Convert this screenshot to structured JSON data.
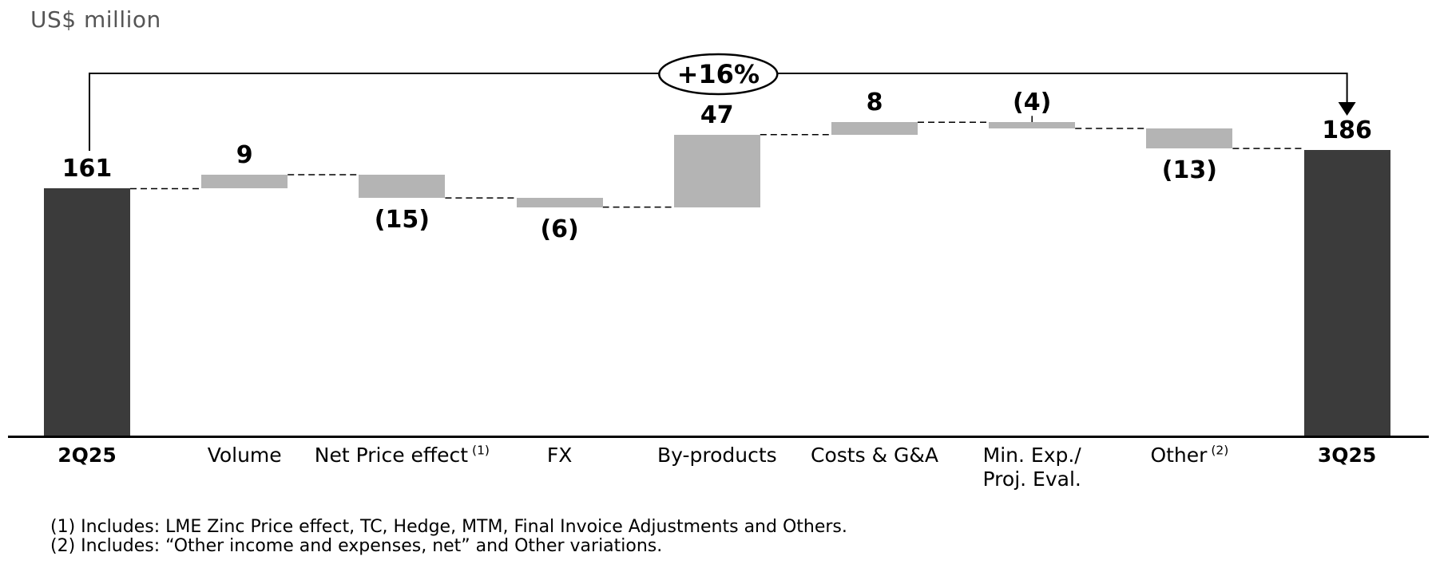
{
  "chart_data": {
    "type": "waterfall",
    "title": "US$ million",
    "change_label": "+16%",
    "categories": [
      "2Q25",
      "Volume",
      "Net Price effect (1)",
      "FX",
      "By-products",
      "Costs & G&A",
      "Min. Exp./Proj. Eval.",
      "Other (2)",
      "3Q25"
    ],
    "steps": [
      {
        "label": "2Q25",
        "type": "total",
        "value": 161,
        "display": "161",
        "bold_axis_label": true
      },
      {
        "label": "Volume",
        "type": "delta",
        "value": 9,
        "display": "9"
      },
      {
        "label": "Net Price effect",
        "sup": "(1)",
        "type": "delta",
        "value": -15,
        "display": "(15)"
      },
      {
        "label": "FX",
        "type": "delta",
        "value": -6,
        "display": "(6)"
      },
      {
        "label": "By-products",
        "type": "delta",
        "value": 47,
        "display": "47"
      },
      {
        "label": "Costs & G&A",
        "type": "delta",
        "value": 8,
        "display": "8"
      },
      {
        "label": "Min. Exp./\nProj. Eval.",
        "type": "delta",
        "value": -4,
        "display": "(4)",
        "label_position": "above"
      },
      {
        "label": "Other",
        "sup": "(2)",
        "type": "delta",
        "value": -13,
        "display": "(13)"
      },
      {
        "label": "3Q25",
        "type": "total",
        "value": 186,
        "display": "186",
        "bold_axis_label": true
      }
    ],
    "start_value": 161,
    "end_value": 186,
    "footnotes": [
      "(1) Includes: LME Zinc Price effect, TC, Hedge, MTM, Final Invoice Adjustments and Others.",
      "(2) Includes: “Other income and expenses, net” and Other variations."
    ],
    "colors": {
      "total_bar": "#3b3b3b",
      "delta_bar": "#b4b4b4",
      "title_text": "#555555",
      "line": "#000000"
    }
  }
}
